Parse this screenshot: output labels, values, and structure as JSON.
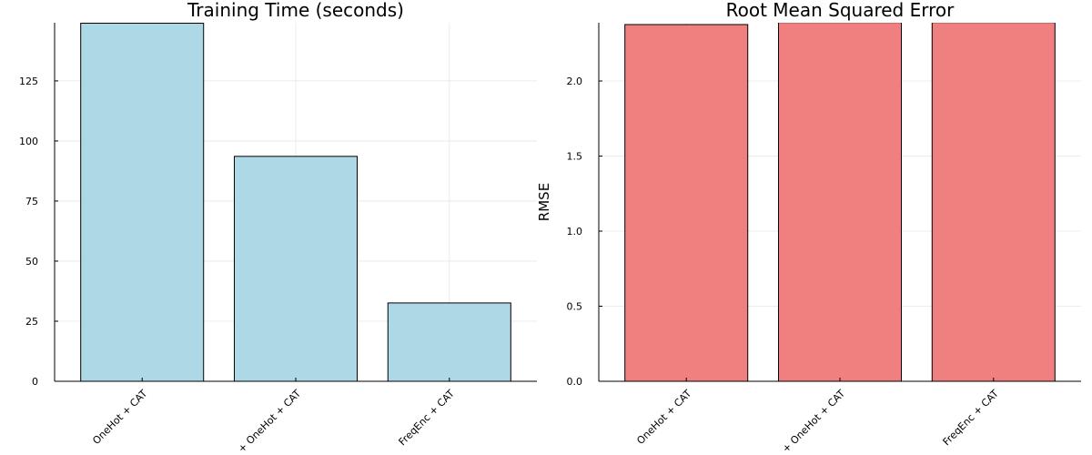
{
  "chart_data": [
    {
      "type": "bar",
      "title": "Training Time (seconds)",
      "categories": [
        "OneHot + CAT",
        "+ OneHot + CAT",
        "FreqEnc + CAT"
      ],
      "values": [
        149,
        93.6,
        32.6
      ],
      "color": "#add8e6",
      "ylim": [
        0,
        149.2
      ],
      "yticks": [
        0,
        25,
        50,
        75,
        100,
        125
      ],
      "grid": true
    },
    {
      "type": "bar",
      "title": "Root Mean Squared Error",
      "y_label": "RMSE",
      "categories": [
        "OneHot + CAT",
        "+ OneHot + CAT",
        "FreqEnc + CAT"
      ],
      "values": [
        2.376,
        2.39,
        2.39
      ],
      "color": "#f08080",
      "ylim": [
        0,
        2.388
      ],
      "yticks": [
        {
          "value": 0,
          "label": "0.0"
        },
        {
          "value": 0.5,
          "label": "0.5"
        },
        {
          "value": 1,
          "label": "1.0"
        },
        {
          "value": 1.5,
          "label": "1.5"
        },
        {
          "value": 2,
          "label": "2.0"
        }
      ],
      "grid": true
    }
  ]
}
